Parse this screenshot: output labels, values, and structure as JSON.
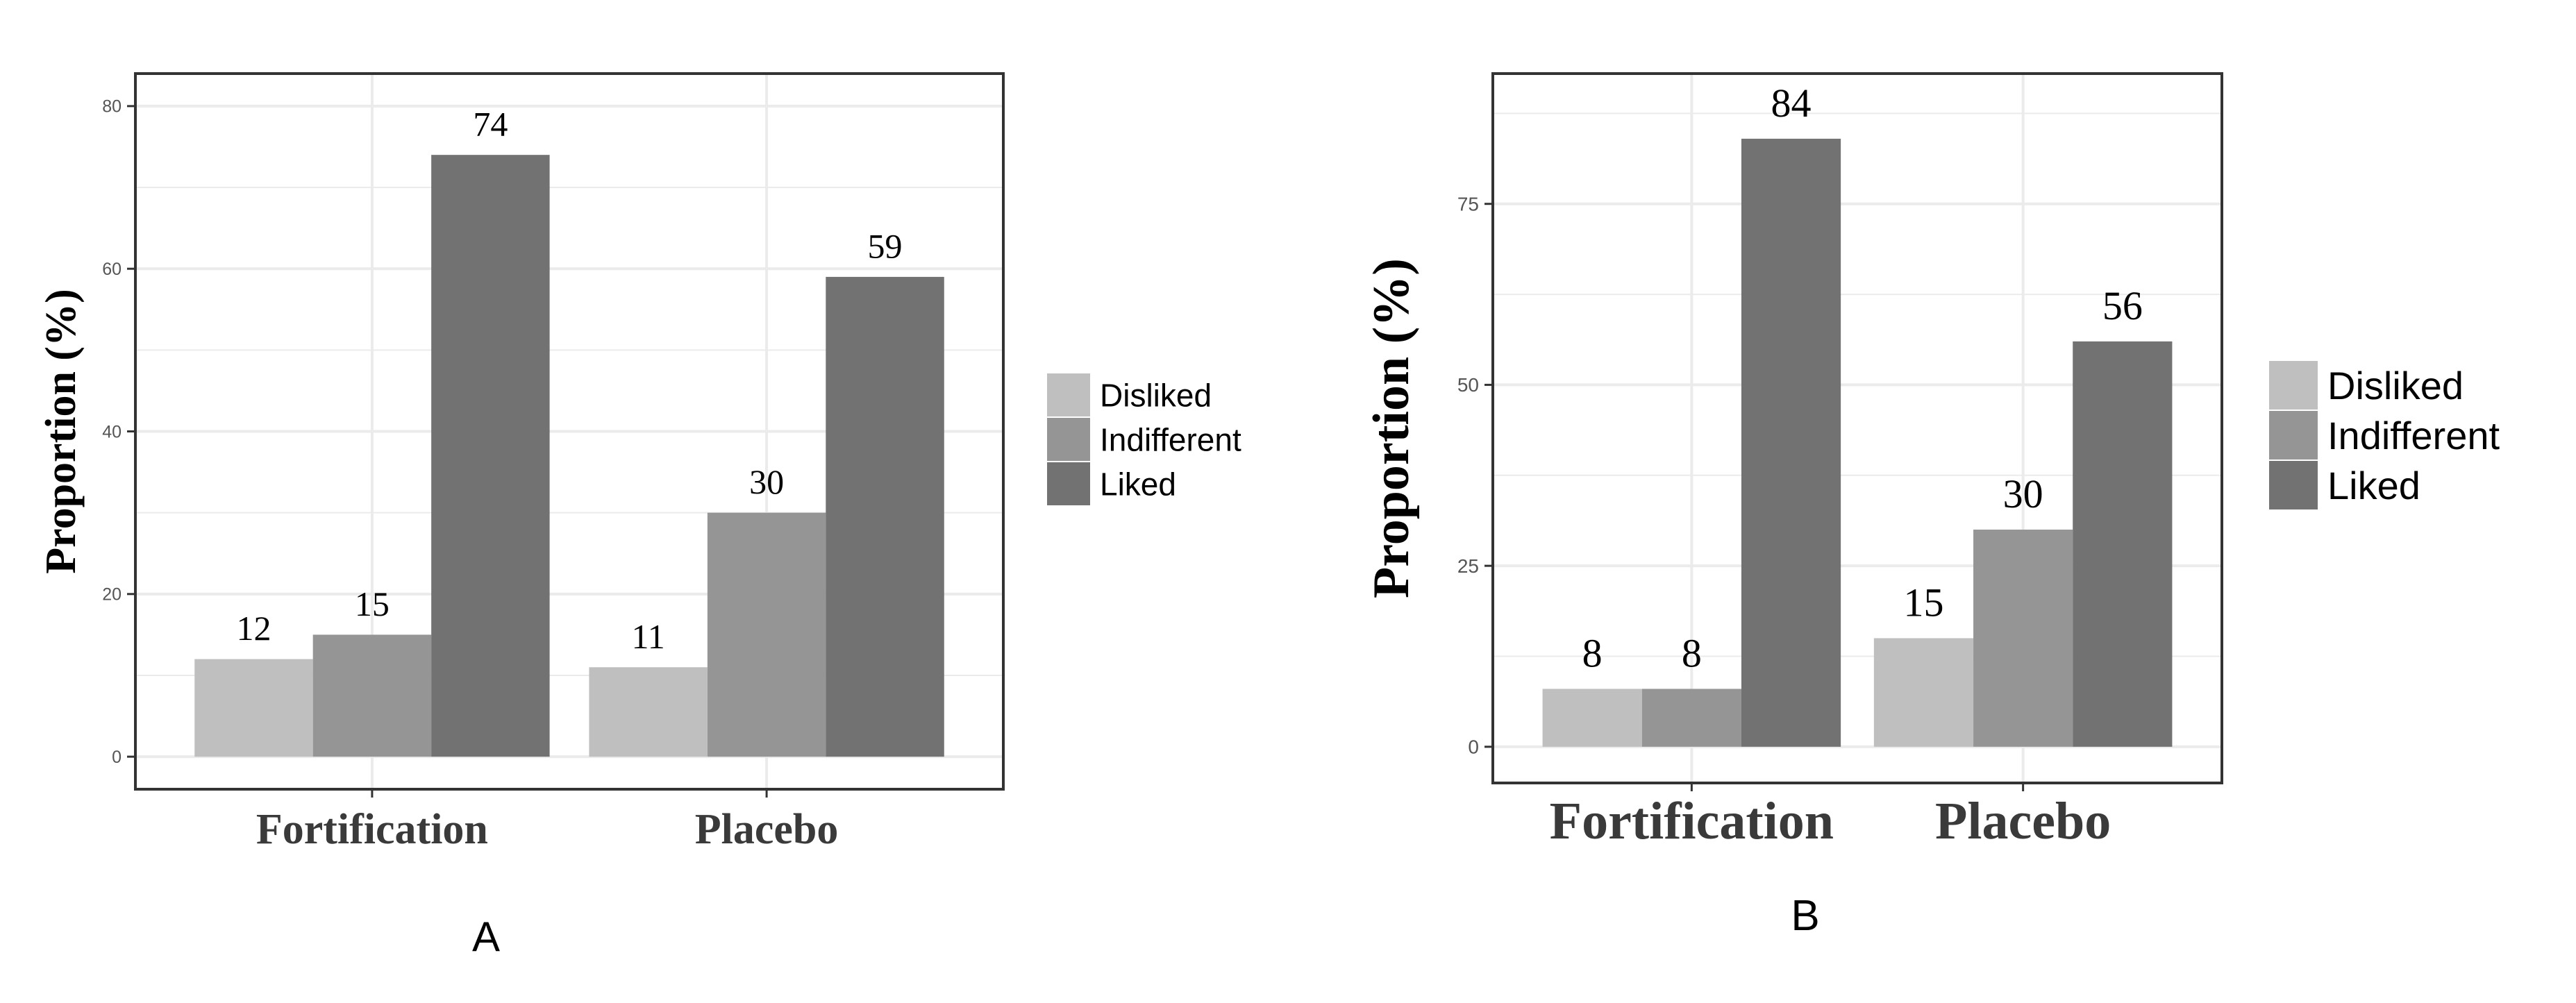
{
  "colors": {
    "Disliked": "#bfbfbf",
    "Indifferent": "#959595",
    "Liked": "#727272",
    "panel_border": "#333333",
    "grid": "#ebebeb"
  },
  "chart_data": [
    {
      "type": "bar",
      "panel_label": "A",
      "categories": [
        "Fortification",
        "Placebo"
      ],
      "series": [
        {
          "name": "Disliked",
          "values": [
            12,
            11
          ]
        },
        {
          "name": "Indifferent",
          "values": [
            15,
            30
          ]
        },
        {
          "name": "Liked",
          "values": [
            74,
            59
          ]
        }
      ],
      "data_labels": [
        [
          "12",
          "15",
          "74"
        ],
        [
          "11",
          "30",
          "59"
        ]
      ],
      "ylabel": "Proportion (%)",
      "xlabel": "",
      "ylim": [
        -4,
        84
      ],
      "yticks": [
        0,
        20,
        40,
        60,
        80
      ],
      "grid": true,
      "legend": "right"
    },
    {
      "type": "bar",
      "panel_label": "B",
      "categories": [
        "Fortification",
        "Placebo"
      ],
      "series": [
        {
          "name": "Disliked",
          "values": [
            8,
            15
          ]
        },
        {
          "name": "Indifferent",
          "values": [
            8,
            30
          ]
        },
        {
          "name": "Liked",
          "values": [
            84,
            56
          ]
        }
      ],
      "data_labels": [
        [
          "8",
          "8",
          "84"
        ],
        [
          "15",
          "30",
          "56"
        ]
      ],
      "ylabel": "Proportion (%)",
      "xlabel": "",
      "ylim": [
        -5,
        93
      ],
      "yticks": [
        0,
        25,
        50,
        75
      ],
      "grid": true,
      "legend": "right"
    }
  ]
}
